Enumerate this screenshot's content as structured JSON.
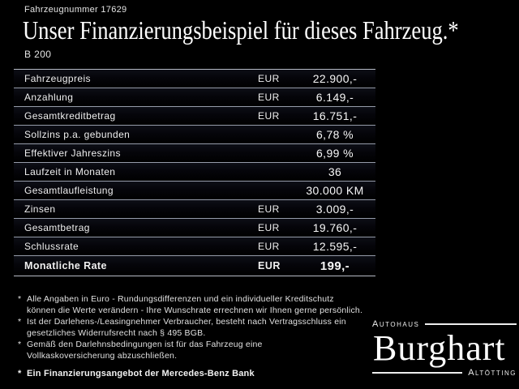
{
  "header": {
    "vehicle_number": "Fahrzeugnummer 17629",
    "title": "Unser Finanzierungsbeispiel für dieses Fahrzeug.*",
    "model": "B 200"
  },
  "table": {
    "rows": [
      {
        "label": "Fahrzeugpreis",
        "currency": "EUR",
        "value": "22.900,-"
      },
      {
        "label": "Anzahlung",
        "currency": "EUR",
        "value": "6.149,-"
      },
      {
        "label": "Gesamtkreditbetrag",
        "currency": "EUR",
        "value": "16.751,-"
      },
      {
        "label": "Sollzins p.a. gebunden",
        "currency": "",
        "value": "6,78 %"
      },
      {
        "label": "Effektiver Jahreszins",
        "currency": "",
        "value": "6,99 %"
      },
      {
        "label": "Laufzeit in Monaten",
        "currency": "",
        "value": "36"
      },
      {
        "label": "Gesamtlaufleistung",
        "currency": "",
        "value": "30.000 KM"
      },
      {
        "label": "Zinsen",
        "currency": "EUR",
        "value": "3.009,-"
      },
      {
        "label": "Gesamtbetrag",
        "currency": "EUR",
        "value": "19.760,-"
      },
      {
        "label": "Schlussrate",
        "currency": "EUR",
        "value": "12.595,-"
      },
      {
        "label": "Monatliche Rate",
        "currency": "EUR",
        "value": "199,-"
      }
    ]
  },
  "footnotes": [
    {
      "marker": "*",
      "lines": [
        "Alle Angaben in Euro - Rundungsdifferenzen und ein individueller Kreditschutz",
        "können die Werte verändern - Ihre Wunschrate errechnen wir Ihnen gerne persönlich."
      ]
    },
    {
      "marker": "*",
      "lines": [
        "Ist der Darlehens-/Leasingnehmer Verbraucher, besteht nach Vertragsschluss ein",
        "gesetzliches Widerrufsrecht nach § 495 BGB."
      ]
    },
    {
      "marker": "*",
      "lines": [
        "Gemäß den Darlehnsbedingungen ist für das Fahrzeug eine",
        "Vollkaskoversicherung abzuschließen."
      ]
    }
  ],
  "final_note": {
    "marker": "*",
    "text": "Ein Finanzierungsangebot der Mercedes-Benz Bank"
  },
  "logo": {
    "autohaus": "Autohaus",
    "name": "Burghart",
    "city": "Altötting"
  },
  "colors": {
    "background": "#000000",
    "text": "#ffffff",
    "separator": "#969caa"
  }
}
